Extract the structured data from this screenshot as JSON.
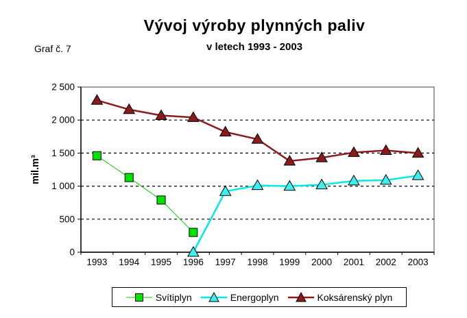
{
  "annotation_label": "Graf č. 7",
  "chart_data": {
    "type": "line",
    "title": "Vývoj výroby plynných paliv",
    "subtitle": "v letech 1993 - 2003",
    "ylabel": "mil.m³",
    "xlabel": "",
    "grid": "horizontal-dashed",
    "legend_position": "bottom",
    "ylim": [
      0,
      2500
    ],
    "y_ticks": [
      0,
      500,
      1000,
      1500,
      2000,
      2500
    ],
    "y_tick_labels": [
      "0",
      "500",
      "1 000",
      "1 500",
      "2 000",
      "2 500"
    ],
    "categories": [
      "1993",
      "1994",
      "1995",
      "1996",
      "1997",
      "1998",
      "1999",
      "2000",
      "2001",
      "2002",
      "2003"
    ],
    "series": [
      {
        "name": "Svítiplyn",
        "marker": "square",
        "color": "#00CC00",
        "marker_fill": "#00E400",
        "line_width": 1,
        "values": [
          1460,
          1130,
          790,
          300,
          null,
          null,
          null,
          null,
          null,
          null,
          null
        ]
      },
      {
        "name": "Energoplyn",
        "marker": "triangle",
        "color": "#00E8E8",
        "marker_fill": "#3FEFEF",
        "line_width": 2.5,
        "values": [
          null,
          null,
          null,
          0,
          920,
          1010,
          1000,
          1020,
          1080,
          1090,
          1160
        ]
      },
      {
        "name": "Koksárenský plyn",
        "marker": "triangle",
        "color": "#8B1A1A",
        "marker_fill": "#8B1A1A",
        "line_width": 2.5,
        "values": [
          2300,
          2160,
          2070,
          2040,
          1820,
          1710,
          1380,
          1430,
          1510,
          1540,
          1500
        ]
      }
    ],
    "colors": {
      "axis": "#000000",
      "plot_border": "#808080",
      "gridline": "#000000",
      "background": "#ffffff"
    }
  }
}
